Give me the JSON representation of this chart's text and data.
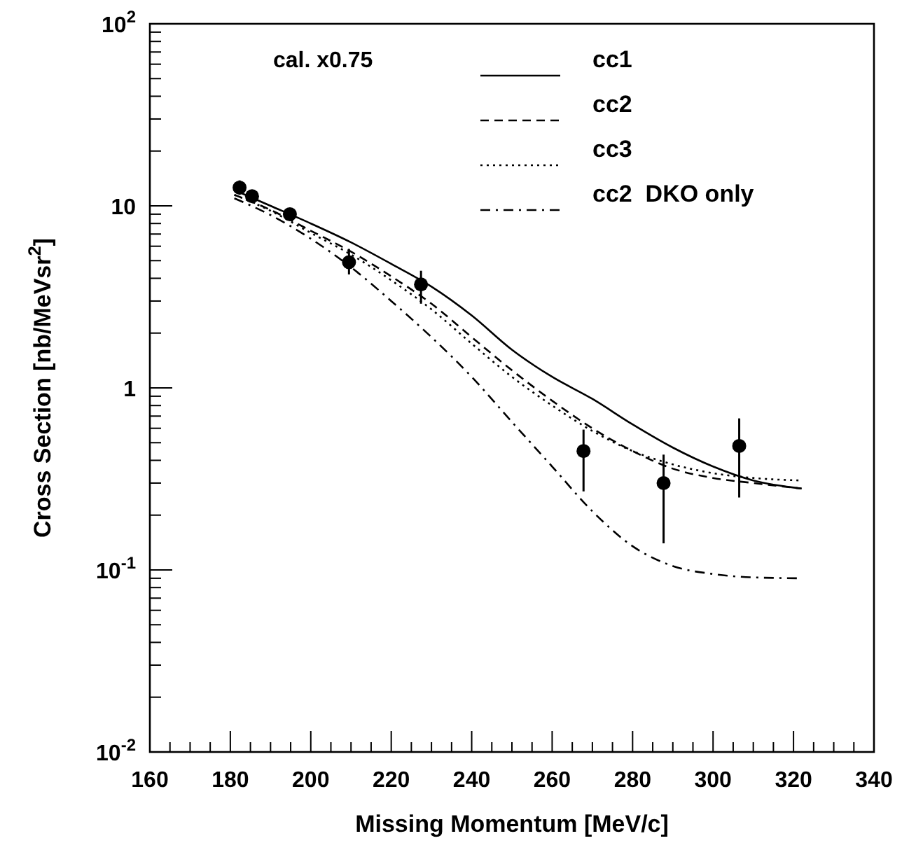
{
  "chart_data": {
    "type": "line",
    "xlabel": "Missing Momentum [MeV/c]",
    "ylabel": "Cross Section [nb/MeVsr$^{2}$]",
    "log": "y",
    "xlim": [
      160,
      340
    ],
    "xticks": [
      160,
      180,
      200,
      220,
      240,
      260,
      280,
      300,
      320,
      340
    ],
    "ylim": [
      0.01,
      100
    ],
    "yticks": [
      {
        "value": 0.01,
        "label": "10$^{-2}$"
      },
      {
        "value": 0.1,
        "label": "10$^{-1}$"
      },
      1,
      10,
      {
        "value": 100,
        "label": "10$^{2}$"
      }
    ],
    "grid": false,
    "legend": "top right",
    "annotations": [
      "cal. x0.75"
    ],
    "series": [
      {
        "name": "cc1",
        "color": "#000000",
        "line_style": "solid",
        "x": [
          181,
          190,
          200,
          210,
          220,
          230,
          240,
          250,
          260,
          270,
          280,
          290,
          300,
          310,
          322
        ],
        "values": [
          12.2,
          10.0,
          8.0,
          6.3,
          4.8,
          3.6,
          2.5,
          1.62,
          1.15,
          0.87,
          0.63,
          0.47,
          0.37,
          0.31,
          0.28
        ]
      },
      {
        "name": "cc2",
        "color": "#000000",
        "line_style": "dashed",
        "x": [
          181,
          190,
          200,
          210,
          220,
          230,
          240,
          250,
          260,
          270,
          280,
          290,
          300,
          310,
          322
        ],
        "values": [
          11.5,
          9.5,
          7.3,
          5.6,
          4.1,
          2.9,
          1.9,
          1.25,
          0.85,
          0.6,
          0.45,
          0.36,
          0.32,
          0.3,
          0.28
        ]
      },
      {
        "name": "cc3",
        "color": "#000000",
        "line_style": "dotted",
        "x": [
          181,
          190,
          200,
          210,
          220,
          230,
          240,
          250,
          260,
          270,
          280,
          290,
          300,
          310,
          322
        ],
        "values": [
          11.5,
          9.4,
          7.1,
          5.4,
          3.9,
          2.7,
          1.75,
          1.15,
          0.8,
          0.58,
          0.45,
          0.38,
          0.34,
          0.32,
          0.31
        ]
      },
      {
        "name": "cc2  DKO only",
        "color": "#000000",
        "line_style": "dashdot",
        "x": [
          181,
          190,
          200,
          210,
          220,
          230,
          240,
          250,
          260,
          270,
          280,
          290,
          300,
          310,
          322
        ],
        "values": [
          11,
          8.9,
          6.6,
          4.6,
          3.0,
          1.9,
          1.15,
          0.65,
          0.37,
          0.21,
          0.135,
          0.105,
          0.095,
          0.091,
          0.09
        ]
      },
      {
        "type": "scatter",
        "color": "#000000",
        "marker": "circle",
        "x": [
          182.3,
          185.4,
          194.8,
          209.5,
          227.4,
          267.8,
          287.7,
          306.5
        ],
        "values": [
          12.6,
          11.3,
          9.0,
          4.9,
          3.7,
          0.45,
          0.3,
          0.48
        ],
        "errors": [
          [
            11.5,
            13.8
          ],
          [
            10.4,
            12.2
          ],
          [
            8.4,
            9.7
          ],
          [
            4.2,
            5.8
          ],
          [
            2.9,
            4.4
          ],
          [
            0.27,
            0.59
          ],
          [
            0.14,
            0.43
          ],
          [
            0.25,
            0.68
          ]
        ]
      }
    ]
  }
}
